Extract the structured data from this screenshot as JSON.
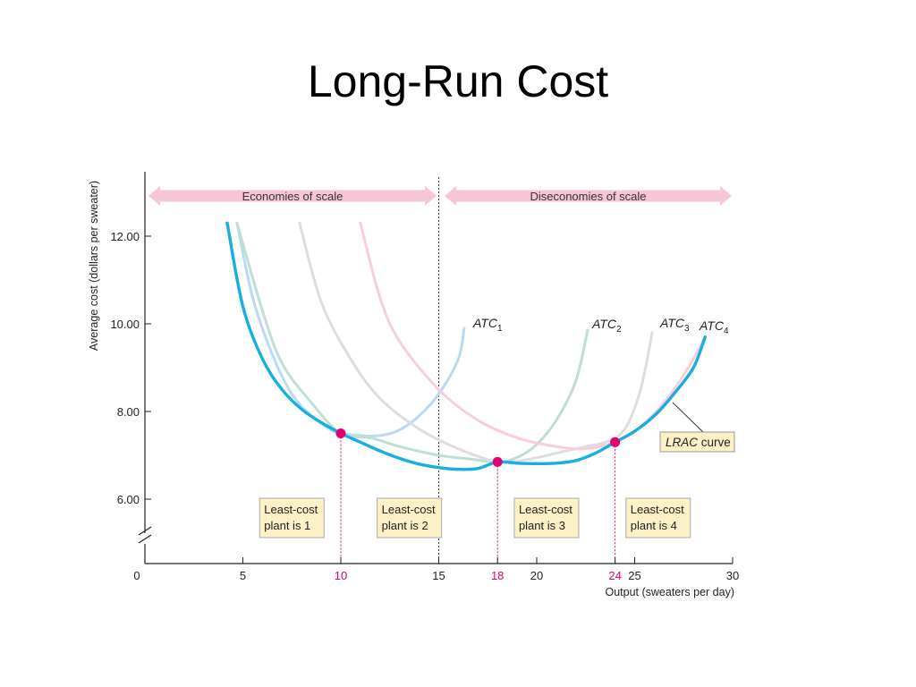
{
  "slide": {
    "title": "Long-Run Cost"
  },
  "chart_data": {
    "type": "line",
    "title": "Long-Run Cost",
    "xlabel": "Output (sweaters per day)",
    "ylabel": "Average cost (dollars per sweater)",
    "xlim": [
      0,
      30
    ],
    "ylim": [
      5.5,
      13
    ],
    "x_ticks": [
      {
        "value": 0,
        "label": "0",
        "color": "#222222"
      },
      {
        "value": 5,
        "label": "5",
        "color": "#222222"
      },
      {
        "value": 10,
        "label": "10",
        "color": "#e0006e"
      },
      {
        "value": 15,
        "label": "15",
        "color": "#222222"
      },
      {
        "value": 18,
        "label": "18",
        "color": "#e0006e"
      },
      {
        "value": 20,
        "label": "20",
        "color": "#222222"
      },
      {
        "value": 24,
        "label": "24",
        "color": "#e0006e"
      },
      {
        "value": 25,
        "label": "25",
        "color": "#222222"
      },
      {
        "value": 30,
        "label": "30",
        "color": "#222222"
      }
    ],
    "y_ticks": [
      {
        "value": 6,
        "label": "6.00"
      },
      {
        "value": 8,
        "label": "8.00"
      },
      {
        "value": 10,
        "label": "10.00"
      },
      {
        "value": 12,
        "label": "12.00"
      }
    ],
    "series": [
      {
        "name": "ATC₁",
        "label_main": "ATC",
        "label_sub": "1",
        "color": "#b9dbef",
        "points": [
          [
            4.7,
            12.3
          ],
          [
            5.5,
            10.6
          ],
          [
            6.5,
            9.3
          ],
          [
            7.5,
            8.4
          ],
          [
            8.5,
            7.9
          ],
          [
            9.5,
            7.58
          ],
          [
            10,
            7.5
          ],
          [
            11,
            7.45
          ],
          [
            12,
            7.45
          ],
          [
            13,
            7.58
          ],
          [
            14,
            7.9
          ],
          [
            15,
            8.4
          ],
          [
            16,
            9.2
          ],
          [
            16.3,
            9.9
          ]
        ]
      },
      {
        "name": "ATC₂",
        "label_main": "ATC",
        "label_sub": "2",
        "color": "#bfdfd5",
        "points": [
          [
            4.7,
            12.3
          ],
          [
            6,
            10.3
          ],
          [
            7,
            9.1
          ],
          [
            8.5,
            8.2
          ],
          [
            10,
            7.5
          ],
          [
            11.5,
            7.4
          ],
          [
            13,
            7.2
          ],
          [
            15,
            7.0
          ],
          [
            16.5,
            6.92
          ],
          [
            18,
            6.85
          ],
          [
            19,
            6.95
          ],
          [
            20,
            7.25
          ],
          [
            21,
            7.8
          ],
          [
            22,
            8.7
          ],
          [
            22.6,
            9.85
          ]
        ]
      },
      {
        "name": "ATC₃",
        "label_main": "ATC",
        "label_sub": "3",
        "color": "#dfdae4",
        "points": [
          [
            7.9,
            12.3
          ],
          [
            9,
            10.5
          ],
          [
            10.5,
            9.2
          ],
          [
            12,
            8.3
          ],
          [
            14,
            7.6
          ],
          [
            16,
            7.15
          ],
          [
            18,
            6.85
          ],
          [
            19.5,
            6.9
          ],
          [
            21,
            7.05
          ],
          [
            22.5,
            7.2
          ],
          [
            23.5,
            7.3
          ],
          [
            24.5,
            7.6
          ],
          [
            25.3,
            8.5
          ],
          [
            25.9,
            9.8
          ]
        ]
      },
      {
        "name": "ATC₄",
        "label_main": "ATC",
        "label_sub": "4",
        "color": "#f9cddb",
        "points": [
          [
            11,
            12.3
          ],
          [
            12,
            10.6
          ],
          [
            13,
            9.6
          ],
          [
            15,
            8.5
          ],
          [
            17,
            7.8
          ],
          [
            19,
            7.4
          ],
          [
            21,
            7.2
          ],
          [
            22.5,
            7.15
          ],
          [
            24,
            7.3
          ],
          [
            25,
            7.55
          ],
          [
            26,
            7.95
          ],
          [
            27,
            8.5
          ],
          [
            28,
            9.2
          ],
          [
            28.6,
            9.7
          ]
        ]
      },
      {
        "name": "LRAC curve",
        "label_main": "LRAC",
        "label_sub": "",
        "color": "#1aaee0",
        "points": [
          [
            4.2,
            12.3
          ],
          [
            5,
            10.4
          ],
          [
            6,
            9.2
          ],
          [
            7,
            8.5
          ],
          [
            8,
            8.05
          ],
          [
            9,
            7.75
          ],
          [
            10,
            7.5
          ],
          [
            11,
            7.3
          ],
          [
            12,
            7.1
          ],
          [
            13,
            6.93
          ],
          [
            14,
            6.8
          ],
          [
            15,
            6.72
          ],
          [
            16,
            6.68
          ],
          [
            17,
            6.7
          ],
          [
            18,
            6.85
          ],
          [
            19,
            6.82
          ],
          [
            20,
            6.81
          ],
          [
            21,
            6.82
          ],
          [
            22,
            6.88
          ],
          [
            23,
            7.05
          ],
          [
            24,
            7.3
          ],
          [
            25,
            7.55
          ],
          [
            26,
            7.9
          ],
          [
            27,
            8.4
          ],
          [
            28,
            9.0
          ],
          [
            28.6,
            9.7
          ]
        ]
      }
    ],
    "lrac_label": {
      "main": "LRAC",
      "rest": " curve"
    },
    "min_points": [
      [
        10,
        7.5
      ],
      [
        18,
        6.85
      ],
      [
        24,
        7.3
      ]
    ],
    "boundary_x": 15,
    "regions": [
      {
        "label": "Economies of scale",
        "x_range": [
          0,
          15
        ]
      },
      {
        "label": "Diseconomies of scale",
        "x_range": [
          15,
          30
        ]
      }
    ],
    "plant_labels": [
      {
        "line1": "Least-cost",
        "line2": "plant is 1",
        "x": 7.5
      },
      {
        "line1": "Least-cost",
        "line2": "plant is 2",
        "x": 13.5
      },
      {
        "line1": "Least-cost",
        "line2": "plant is 3",
        "x": 20.5
      },
      {
        "line1": "Least-cost",
        "line2": "plant is 4",
        "x": 26.2
      }
    ],
    "grid": false,
    "legend": "none"
  }
}
